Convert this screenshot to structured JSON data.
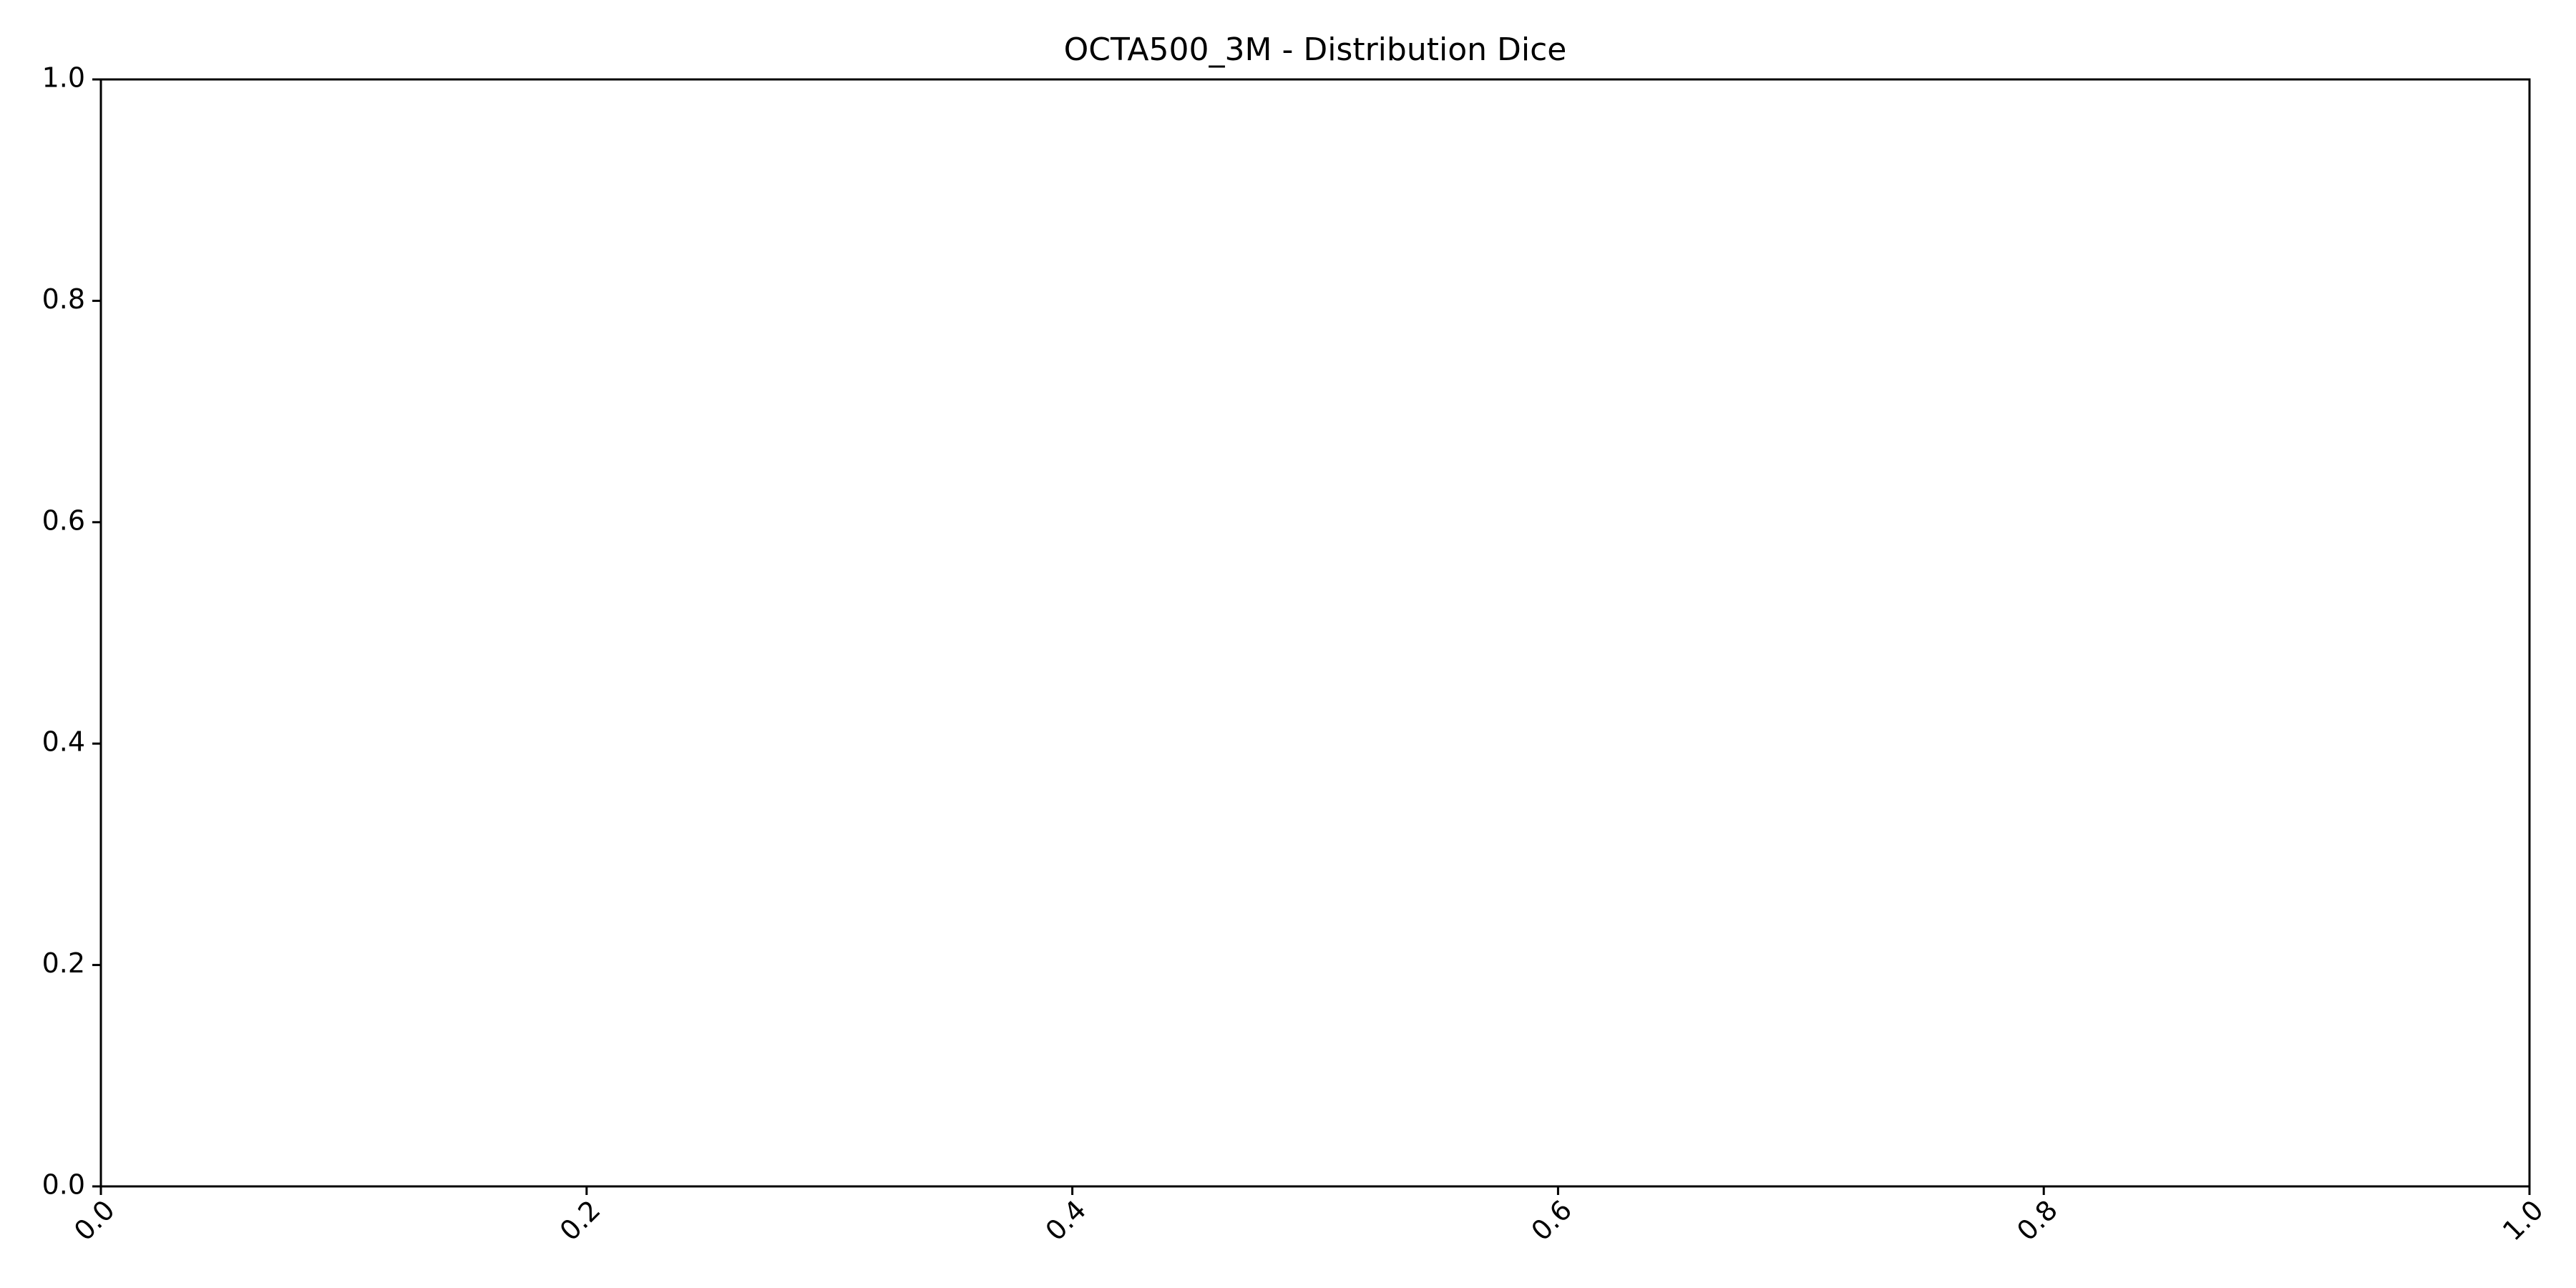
{
  "chart_data": {
    "type": "scatter",
    "title": "OCTA500_3M - Distribution Dice",
    "xlabel": "",
    "ylabel": "",
    "xlim": [
      0.0,
      1.0
    ],
    "ylim": [
      0.0,
      1.0
    ],
    "x_ticks": [
      "0.0",
      "0.2",
      "0.4",
      "0.6",
      "0.8",
      "1.0"
    ],
    "y_ticks": [
      "0.0",
      "0.2",
      "0.4",
      "0.6",
      "0.8",
      "1.0"
    ],
    "x_tick_rotation_deg": 45,
    "grid": false,
    "legend": "none",
    "series": []
  }
}
